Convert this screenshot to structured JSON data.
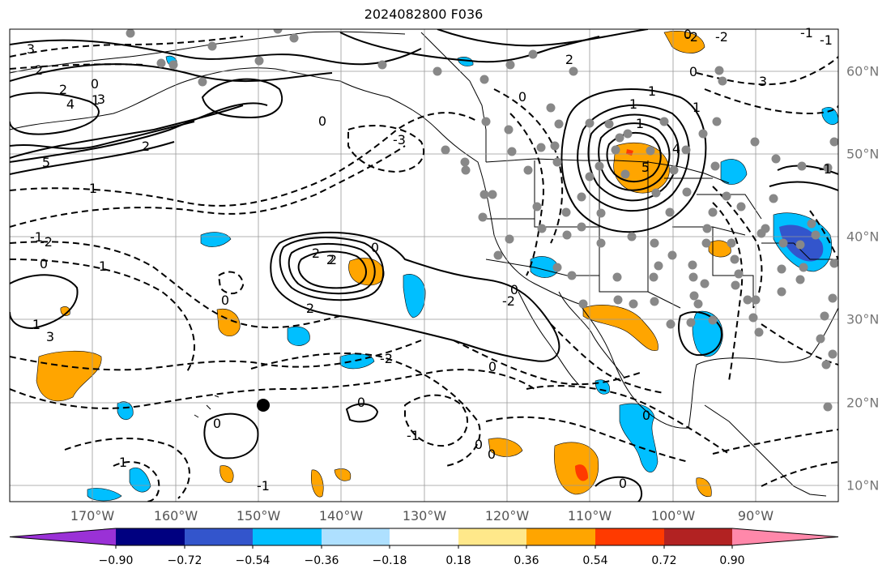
{
  "title": "2024082800 F036",
  "lon_labels": [
    "170°W",
    "160°W",
    "150°W",
    "140°W",
    "130°W",
    "120°W",
    "110°W",
    "100°W",
    "90°W"
  ],
  "lat_labels": [
    "60°N",
    "50°N",
    "40°N",
    "30°N",
    "20°N",
    "10°N"
  ],
  "colorbar": {
    "ticks": [
      "−0.90",
      "−0.72",
      "−0.54",
      "−0.36",
      "−0.18",
      "0.18",
      "0.36",
      "0.54",
      "0.72",
      "0.90"
    ],
    "colors": [
      "#9a31d6",
      "#000080",
      "#3355cc",
      "#00bfff",
      "#aee0ff",
      "#ffffff",
      "#ffe88a",
      "#ffa500",
      "#ff3a00",
      "#b22222",
      "#ff88aa"
    ]
  },
  "contour_labels": [
    "3",
    "2",
    "2",
    "0",
    "1",
    "4",
    "3",
    "5",
    "2",
    "1",
    "0",
    "-1",
    "2",
    "-2",
    "0",
    "1",
    "0",
    "1",
    "3",
    "-3",
    "0",
    "2",
    "2",
    "2",
    "0",
    "-2",
    "2",
    "1",
    "5",
    "4",
    "1",
    "1",
    "1",
    "0",
    "3",
    "-2",
    "0",
    "-2",
    "-1",
    "-1",
    "-1",
    "0",
    "-2",
    "0",
    "0",
    "-1",
    "0",
    "0",
    "1",
    "0",
    "-1",
    "0",
    "0"
  ],
  "colors": {
    "frame": "#000000",
    "grid": "#999999",
    "station": "#888888",
    "label": "#555555"
  }
}
